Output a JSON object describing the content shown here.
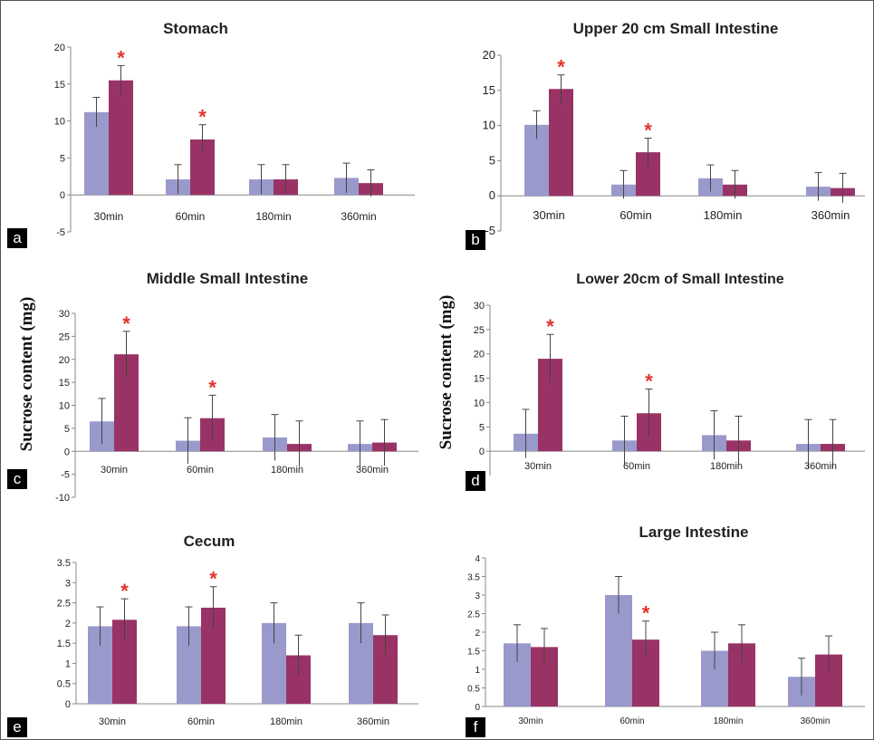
{
  "figure": {
    "y_axis_label": "Sucrose content (mg)",
    "colors": {
      "series_a": "#9999cc",
      "series_b": "#993366",
      "star": "#e0332a",
      "axis": "#888888"
    }
  },
  "chart_data": [
    {
      "type": "bar",
      "panel": "a",
      "title": "Stomach",
      "categories": [
        "30min",
        "60min",
        "180min",
        "360min"
      ],
      "series": [
        {
          "values": [
            11.2,
            2.1,
            2.1,
            2.3
          ],
          "errors": [
            2.0,
            2.0,
            2.0,
            2.0
          ]
        },
        {
          "values": [
            15.5,
            7.5,
            2.1,
            1.6
          ],
          "errors": [
            2.0,
            2.0,
            2.0,
            1.8
          ]
        }
      ],
      "significant": [
        true,
        true,
        false,
        false
      ],
      "star_label": "*",
      "yticks": [
        -5,
        0,
        5,
        10,
        15,
        20
      ],
      "ylim": [
        -5,
        20
      ]
    },
    {
      "type": "bar",
      "panel": "b",
      "title": "Upper 20 cm Small Intestine",
      "categories": [
        "30min",
        "60min",
        "180min",
        "360min"
      ],
      "series": [
        {
          "values": [
            10.1,
            1.6,
            2.5,
            1.3
          ],
          "errors": [
            2.0,
            2.0,
            1.9,
            2.0
          ]
        },
        {
          "values": [
            15.2,
            6.2,
            1.6,
            1.1
          ],
          "errors": [
            2.0,
            2.0,
            2.0,
            2.1
          ]
        }
      ],
      "significant": [
        true,
        true,
        false,
        false
      ],
      "star_label": "*",
      "yticks": [
        -5,
        0,
        5,
        10,
        15,
        20
      ],
      "ylim": [
        -5,
        20
      ]
    },
    {
      "type": "bar",
      "panel": "c",
      "title": "Middle Small Intestine",
      "categories": [
        "30min",
        "60min",
        "180min",
        "360min"
      ],
      "series": [
        {
          "values": [
            6.5,
            2.3,
            3.0,
            1.6
          ],
          "errors": [
            5.0,
            5.0,
            5.0,
            5.0
          ]
        },
        {
          "values": [
            21.1,
            7.2,
            1.6,
            1.9
          ],
          "errors": [
            5.0,
            5.0,
            5.0,
            5.0
          ]
        }
      ],
      "significant": [
        true,
        true,
        false,
        false
      ],
      "star_label": "*",
      "yticks": [
        -10,
        -5,
        0,
        5,
        10,
        15,
        20,
        25,
        30
      ],
      "ylim": [
        -10,
        30
      ]
    },
    {
      "type": "bar",
      "panel": "d",
      "title": "Lower 20cm of Small Intestine",
      "categories": [
        "30min",
        "60min",
        "180min",
        "360min"
      ],
      "series": [
        {
          "values": [
            3.6,
            2.2,
            3.3,
            1.5
          ],
          "errors": [
            5.0,
            5.0,
            5.0,
            5.0
          ]
        },
        {
          "values": [
            19.0,
            7.8,
            2.2,
            1.5
          ],
          "errors": [
            5.0,
            5.0,
            5.0,
            5.0
          ]
        }
      ],
      "significant": [
        true,
        true,
        false,
        false
      ],
      "star_label": "*",
      "yticks": [
        0,
        5,
        10,
        15,
        20,
        25,
        30
      ],
      "ylim": [
        -5,
        30
      ]
    },
    {
      "type": "bar",
      "panel": "e",
      "title": "Cecum",
      "categories": [
        "30min",
        "60min",
        "180min",
        "360min"
      ],
      "series": [
        {
          "values": [
            1.92,
            1.92,
            2.0,
            2.0
          ],
          "errors": [
            0.48,
            0.48,
            0.5,
            0.5
          ]
        },
        {
          "values": [
            2.08,
            2.38,
            1.2,
            1.7
          ],
          "errors": [
            0.52,
            0.52,
            0.5,
            0.5
          ]
        }
      ],
      "significant": [
        true,
        true,
        false,
        false
      ],
      "star_label": "*",
      "yticks": [
        0,
        0.5,
        1,
        1.5,
        2,
        2.5,
        3,
        3.5
      ],
      "ylim": [
        0,
        3.5
      ]
    },
    {
      "type": "bar",
      "panel": "f",
      "title": "Large Intestine",
      "categories": [
        "30min",
        "60min",
        "180min",
        "360min"
      ],
      "series": [
        {
          "values": [
            1.7,
            3.0,
            1.5,
            0.8
          ],
          "errors": [
            0.5,
            0.5,
            0.5,
            0.5
          ]
        },
        {
          "values": [
            1.6,
            1.8,
            1.7,
            1.4
          ],
          "errors": [
            0.5,
            0.5,
            0.5,
            0.5
          ]
        }
      ],
      "significant": [
        false,
        true,
        false,
        false
      ],
      "star_label": "*",
      "yticks": [
        0,
        0.5,
        1,
        1.5,
        2,
        2.5,
        3,
        3.5,
        4
      ],
      "ylim": [
        0,
        4
      ]
    }
  ]
}
